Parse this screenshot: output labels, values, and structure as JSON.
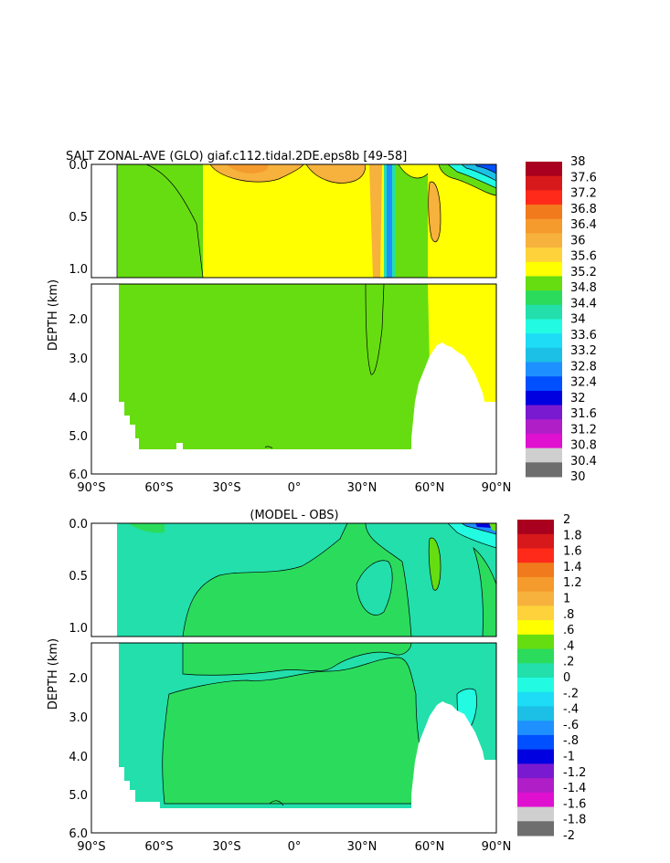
{
  "chart_data": [
    {
      "type": "heatmap",
      "title": "SALT ZONAL-AVE (GLO) giaf.c112.tidal.2DE.eps8b [49-58]",
      "xlabel": "",
      "ylabel": "DEPTH (km)",
      "x_tick_labels": [
        "90°S",
        "60°S",
        "30°S",
        "0°",
        "30°N",
        "60°N",
        "90°N"
      ],
      "y_tick_labels_upper": [
        "0.0",
        "0.5",
        "1.0"
      ],
      "y_tick_labels_lower": [
        "2.0",
        "3.0",
        "4.0",
        "5.0",
        "6.0"
      ],
      "xlim": [
        -90,
        90
      ],
      "ylim_km": [
        6.0,
        0.0
      ],
      "colorbar_labels": [
        "38",
        "37.6",
        "37.2",
        "36.8",
        "36.4",
        "36",
        "35.6",
        "35.2",
        "34.8",
        "34.4",
        "34",
        "33.6",
        "33.2",
        "32.8",
        "32.4",
        "32",
        "31.6",
        "31.2",
        "30.8",
        "30.4",
        "30"
      ],
      "colorbar_colors": [
        "#a8001e",
        "#d7191c",
        "#ff2a1a",
        "#f07a1c",
        "#f59a2c",
        "#f7b13d",
        "#fdd23a",
        "#ffff00",
        "#66dd11",
        "#2bdc5c",
        "#22dfac",
        "#22fbe2",
        "#1edcf5",
        "#1cbfe5",
        "#1e90ff",
        "#0050ff",
        "#0000e0",
        "#7a1ad0",
        "#b01ec8",
        "#e010d0",
        "#cfcfcf",
        "#6e6e6e"
      ]
    },
    {
      "type": "heatmap",
      "title": "(MODEL - OBS)",
      "xlabel": "",
      "ylabel": "DEPTH (km)",
      "x_tick_labels": [
        "90°S",
        "60°S",
        "30°S",
        "0°",
        "30°N",
        "60°N",
        "90°N"
      ],
      "y_tick_labels_upper": [
        "0.0",
        "0.5",
        "1.0"
      ],
      "y_tick_labels_lower": [
        "2.0",
        "3.0",
        "4.0",
        "5.0",
        "6.0"
      ],
      "xlim": [
        -90,
        90
      ],
      "ylim_km": [
        6.0,
        0.0
      ],
      "colorbar_labels": [
        "2",
        "1.8",
        "1.6",
        "1.4",
        "1.2",
        "1",
        ".8",
        ".6",
        ".4",
        ".2",
        "0",
        "-.2",
        "-.4",
        "-.6",
        "-.8",
        "-1",
        "-1.2",
        "-1.4",
        "-1.6",
        "-1.8",
        "-2"
      ],
      "colorbar_colors": [
        "#a8001e",
        "#d7191c",
        "#ff2a1a",
        "#f07a1c",
        "#f59a2c",
        "#f7b13d",
        "#fdd23a",
        "#ffff00",
        "#66dd11",
        "#2bdc5c",
        "#22dfac",
        "#22fbe2",
        "#1edcf5",
        "#1cbfe5",
        "#1e90ff",
        "#0050ff",
        "#0000e0",
        "#7a1ad0",
        "#b01ec8",
        "#e010d0",
        "#cfcfcf",
        "#6e6e6e"
      ]
    }
  ]
}
